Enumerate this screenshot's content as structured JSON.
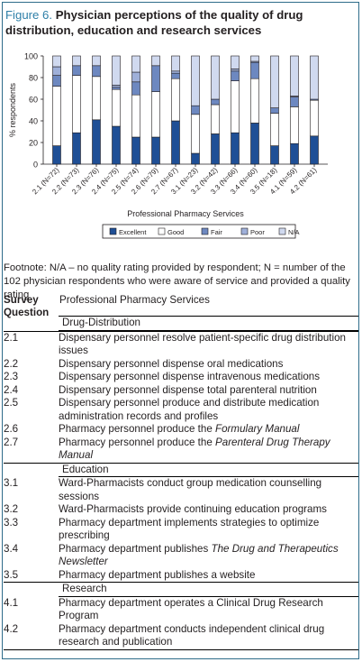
{
  "figure": {
    "label": "Figure 6.",
    "title": "Physician perceptions of the quality of drug distribution, education and research services"
  },
  "chart_data": {
    "type": "bar",
    "stacked": true,
    "ylabel": "% respondents",
    "xlabel": "Professional Pharmacy Services",
    "ylim": [
      0,
      100
    ],
    "yticks": [
      0,
      20,
      40,
      60,
      80,
      100
    ],
    "grid": false,
    "legend_position": "bottom",
    "categories": [
      "2.1 (N=72)",
      "2.2 (N=73)",
      "2.3 (N=76)",
      "2.4 (N=75)",
      "2.5 (N=74)",
      "2.6 (N=79)",
      "2.7 (N=67)",
      "3.1 (N=23)",
      "3.2 (N=42)",
      "3.3 (N=66)",
      "3.4 (N=60)",
      "3.5 (N=18)",
      "4.1 (N=59)",
      "4.2 (N=61)"
    ],
    "series": [
      {
        "name": "Excellent",
        "color": "#1f4f96",
        "values": [
          17,
          29,
          41,
          35,
          25,
          25,
          40,
          10,
          28,
          29,
          38,
          17,
          19,
          26
        ]
      },
      {
        "name": "Good",
        "color": "#ffffff",
        "values": [
          55,
          53,
          40,
          34,
          39,
          42,
          39,
          36,
          27,
          48,
          41,
          30,
          34,
          33
        ]
      },
      {
        "name": "Fair",
        "color": "#6d88c0",
        "values": [
          10,
          9,
          10,
          2,
          12,
          24,
          5,
          8,
          5,
          9,
          15,
          5,
          9,
          1
        ]
      },
      {
        "name": "Poor",
        "color": "#9fb0d9",
        "values": [
          8,
          0,
          0,
          2,
          9,
          0,
          2,
          0,
          0,
          2,
          1,
          0,
          1,
          0
        ]
      },
      {
        "name": "N/A",
        "color": "#d0d9ef",
        "values": [
          10,
          9,
          9,
          27,
          15,
          9,
          14,
          46,
          40,
          12,
          5,
          48,
          37,
          40
        ]
      }
    ]
  },
  "footnote": "Footnote: N/A – no quality rating provided by respondent; N = number of the 102 physician respondents who were aware of service and provided a quality rating",
  "table": {
    "header_left": "Survey Question",
    "header_right": "Professional Pharmacy Services",
    "sections": [
      {
        "name": "Drug-Distribution",
        "rows": [
          {
            "num": "2.1",
            "text": "Dispensary personnel resolve patient-specific drug distribution issues"
          },
          {
            "num": "2.2",
            "text": "Dispensary personnel dispense oral medications"
          },
          {
            "num": "2.3",
            "text": "Dispensary personnel dispense intravenous medications"
          },
          {
            "num": "2.4",
            "text": "Dispensary personnel dispense total parenteral nutrition"
          },
          {
            "num": "2.5",
            "text": "Dispensary personnel produce and distribute medication administration records and profiles"
          },
          {
            "num": "2.6",
            "text": "Pharmacy personnel produce the ",
            "italic": "Formulary Manual"
          },
          {
            "num": "2.7",
            "text": "Pharmacy personnel produce the ",
            "italic": "Parenteral Drug Therapy Manual"
          }
        ]
      },
      {
        "name": "Education",
        "rows": [
          {
            "num": "3.1",
            "text": "Ward-Pharmacists conduct group medication counselling sessions"
          },
          {
            "num": "3.2",
            "text": "Ward-Pharmacists provide continuing education programs"
          },
          {
            "num": "3.3",
            "text": "Pharmacy department implements strategies to optimize prescribing"
          },
          {
            "num": "3.4",
            "text": "Pharmacy department publishes ",
            "italic": "The Drug and Therapeutics Newsletter"
          },
          {
            "num": "3.5",
            "text": "Pharmacy department publishes a website"
          }
        ]
      },
      {
        "name": "Research",
        "rows": [
          {
            "num": "4.1",
            "text": "Pharmacy department operates a Clinical Drug Research Program"
          },
          {
            "num": "4.2",
            "text": "Pharmacy department conducts independent clinical drug research and publication"
          }
        ]
      }
    ]
  }
}
